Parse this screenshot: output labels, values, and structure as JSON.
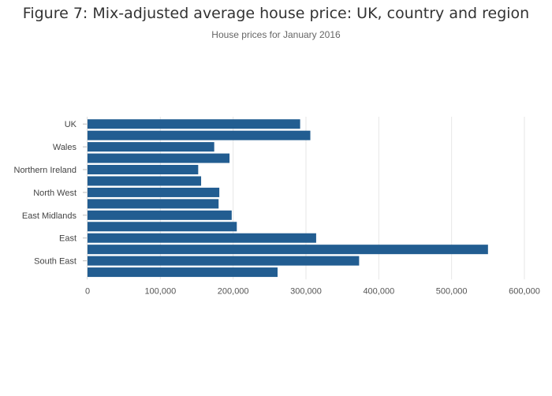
{
  "chart_data": {
    "type": "bar",
    "orientation": "horizontal",
    "title": "Figure 7: Mix-adjusted average house price: UK, country and region",
    "subtitle": "House prices for January 2016",
    "categories": [
      "UK",
      "",
      "Wales",
      "",
      "Northern Ireland",
      "",
      "North West",
      "",
      "East Midlands",
      "",
      "East",
      "",
      "South East",
      ""
    ],
    "values": [
      292000,
      306000,
      174000,
      195000,
      152000,
      156000,
      181000,
      180000,
      198000,
      205000,
      314000,
      550000,
      373000,
      261000
    ],
    "xlim": [
      0,
      600000
    ],
    "xticks": [
      0,
      100000,
      200000,
      300000,
      400000,
      500000,
      600000
    ],
    "xtick_labels": [
      "0",
      "100,000",
      "200,000",
      "300,000",
      "400,000",
      "500,000",
      "600,000"
    ],
    "xlabel": "",
    "ylabel": "",
    "grid": "vertical",
    "bar_color": "#225d91"
  }
}
